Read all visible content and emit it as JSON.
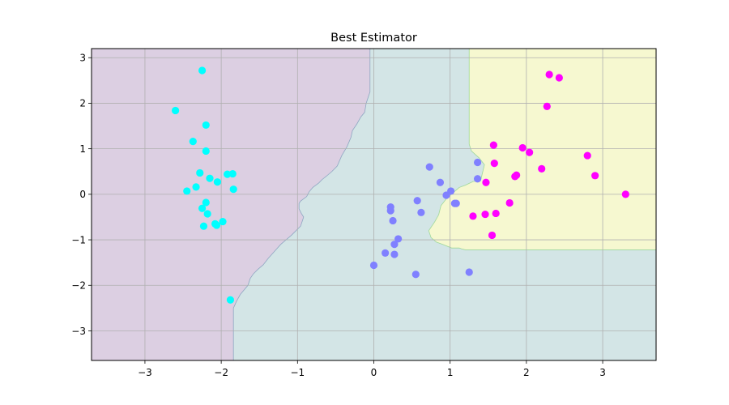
{
  "chart_data": {
    "type": "scatter",
    "title": "Best Estimator",
    "xlabel": "",
    "ylabel": "",
    "xlim": [
      -3.7,
      3.7
    ],
    "ylim": [
      -3.65,
      3.2
    ],
    "grid": true,
    "x_ticks": [
      -3,
      -2,
      -1,
      0,
      1,
      2,
      3
    ],
    "y_ticks": [
      -3,
      -2,
      -1,
      0,
      1,
      2,
      3
    ],
    "x_tick_labels": [
      "−3",
      "−2",
      "−1",
      "0",
      "1",
      "2",
      "3"
    ],
    "y_tick_labels": [
      "−3",
      "−2",
      "−1",
      "0",
      "1",
      "2",
      "3"
    ],
    "decision_regions": [
      {
        "class": 0,
        "color": "#dccfe2",
        "boundary_x": [
          -0.05,
          -0.05,
          -0.1,
          -0.12,
          -0.17,
          -0.22,
          -0.28,
          -0.3,
          -0.35,
          -0.42,
          -0.48,
          -0.55,
          -0.62,
          -0.68,
          -0.72,
          -0.8,
          -0.85,
          -0.88,
          -0.92,
          -0.96,
          -0.98,
          -0.98,
          -0.95,
          -0.92,
          -0.94,
          -0.96,
          -1.02,
          -1.08,
          -1.15,
          -1.22,
          -1.3,
          -1.38,
          -1.45,
          -1.52,
          -1.58,
          -1.62,
          -1.65,
          -1.7,
          -1.75,
          -1.8,
          -1.84,
          -1.84
        ],
        "boundary_y": [
          3.2,
          2.25,
          2.0,
          1.8,
          1.7,
          1.55,
          1.4,
          1.25,
          1.05,
          0.85,
          0.62,
          0.5,
          0.4,
          0.32,
          0.25,
          0.15,
          0.05,
          -0.05,
          -0.1,
          -0.15,
          -0.2,
          -0.32,
          -0.42,
          -0.5,
          -0.6,
          -0.7,
          -0.8,
          -0.9,
          -1.0,
          -1.1,
          -1.25,
          -1.4,
          -1.55,
          -1.65,
          -1.75,
          -1.85,
          -2.0,
          -2.1,
          -2.2,
          -2.35,
          -2.5,
          -3.65
        ]
      },
      {
        "class": 1,
        "color": "#d3e5e6"
      },
      {
        "class": 2,
        "color": "#f6f8d0",
        "boundary_x": [
          1.25,
          1.25,
          1.28,
          1.38,
          1.45,
          1.4,
          1.3,
          1.2,
          1.12,
          1.05,
          0.95,
          0.88,
          0.85,
          0.8,
          0.72,
          0.75,
          0.82,
          0.9,
          1.02,
          1.12,
          1.15,
          1.2,
          3.7
        ],
        "boundary_y": [
          3.2,
          1.1,
          0.95,
          0.8,
          0.65,
          0.3,
          0.28,
          0.2,
          0.15,
          0.05,
          -0.1,
          -0.25,
          -0.45,
          -0.6,
          -0.8,
          -0.95,
          -1.05,
          -1.1,
          -1.18,
          -1.18,
          -1.2,
          -1.22,
          -1.22
        ]
      }
    ],
    "series": [
      {
        "class": 0,
        "color": "#00ffff",
        "points": [
          [
            -2.25,
            2.72
          ],
          [
            -2.6,
            1.84
          ],
          [
            -2.2,
            1.52
          ],
          [
            -2.37,
            1.16
          ],
          [
            -2.2,
            0.95
          ],
          [
            -2.28,
            0.47
          ],
          [
            -2.15,
            0.35
          ],
          [
            -2.05,
            0.27
          ],
          [
            -1.92,
            0.44
          ],
          [
            -1.85,
            0.45
          ],
          [
            -2.33,
            0.16
          ],
          [
            -1.84,
            0.11
          ],
          [
            -2.45,
            0.07
          ],
          [
            -2.2,
            -0.18
          ],
          [
            -2.25,
            -0.31
          ],
          [
            -2.18,
            -0.43
          ],
          [
            -1.98,
            -0.6
          ],
          [
            -2.08,
            -0.65
          ],
          [
            -2.06,
            -0.68
          ],
          [
            -2.23,
            -0.7
          ],
          [
            -1.88,
            -2.32
          ]
        ]
      },
      {
        "class": 1,
        "color": "#8080ff",
        "points": [
          [
            0.73,
            0.6
          ],
          [
            0.87,
            0.26
          ],
          [
            0.95,
            -0.02
          ],
          [
            1.01,
            0.07
          ],
          [
            1.06,
            -0.2
          ],
          [
            1.08,
            -0.2
          ],
          [
            0.57,
            -0.14
          ],
          [
            0.62,
            -0.4
          ],
          [
            0.22,
            -0.28
          ],
          [
            0.22,
            -0.36
          ],
          [
            0.25,
            -0.58
          ],
          [
            0.32,
            -0.98
          ],
          [
            0.27,
            -1.1
          ],
          [
            0.15,
            -1.29
          ],
          [
            0.27,
            -1.32
          ],
          [
            0.0,
            -1.56
          ],
          [
            0.55,
            -1.76
          ],
          [
            1.25,
            -1.71
          ],
          [
            1.36,
            0.7
          ],
          [
            1.36,
            0.34
          ]
        ]
      },
      {
        "class": 2,
        "color": "#ff00ff",
        "points": [
          [
            2.3,
            2.63
          ],
          [
            2.43,
            2.56
          ],
          [
            2.27,
            1.93
          ],
          [
            1.57,
            1.08
          ],
          [
            1.95,
            1.02
          ],
          [
            2.04,
            0.92
          ],
          [
            2.8,
            0.85
          ],
          [
            1.58,
            0.68
          ],
          [
            2.2,
            0.56
          ],
          [
            1.87,
            0.42
          ],
          [
            1.85,
            0.39
          ],
          [
            2.9,
            0.41
          ],
          [
            1.47,
            0.26
          ],
          [
            3.3,
            0.0
          ],
          [
            1.78,
            -0.19
          ],
          [
            1.6,
            -0.42
          ],
          [
            1.46,
            -0.44
          ],
          [
            1.3,
            -0.48
          ],
          [
            1.55,
            -0.9
          ]
        ]
      }
    ]
  }
}
